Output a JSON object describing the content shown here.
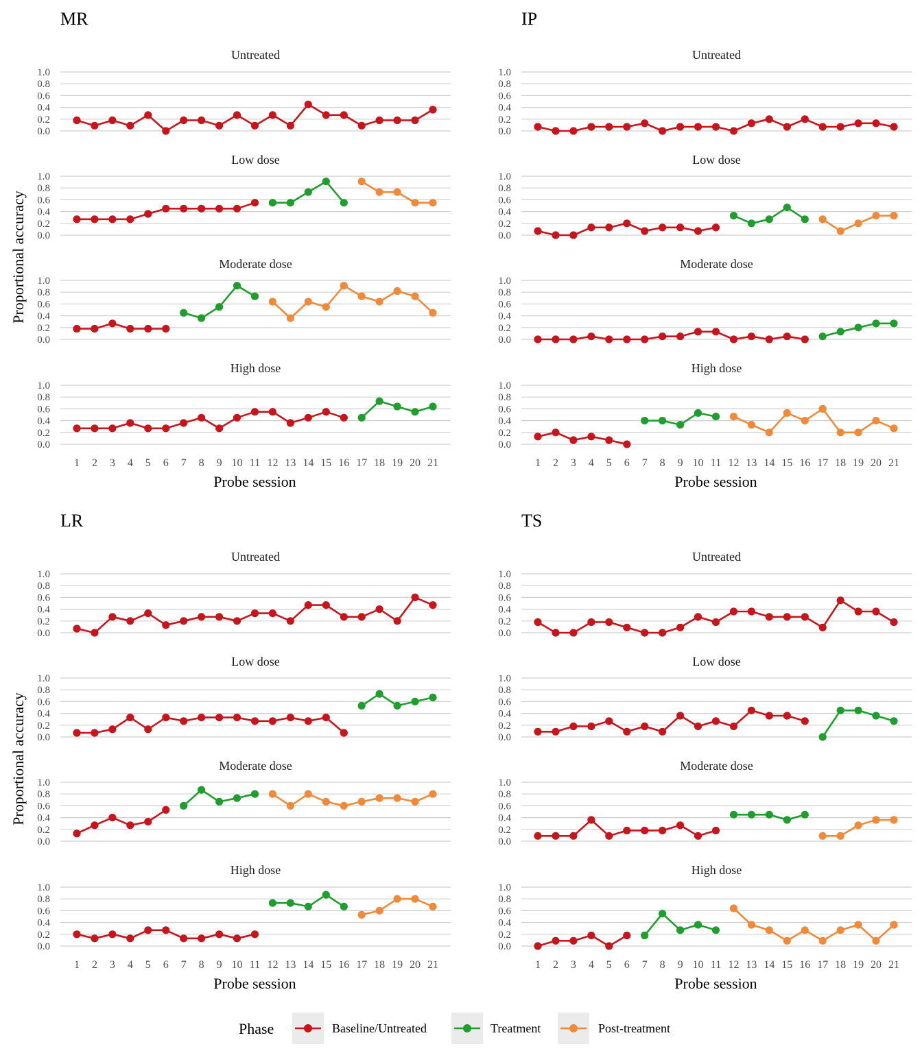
{
  "chart_data": {
    "type": "line",
    "phase_colors": {
      "Baseline/Untreated": "#c4161c",
      "Treatment": "#1f9e2f",
      "Post-treatment": "#ee8a3a"
    },
    "y_ticks": [
      "1.0",
      "0.8",
      "0.6",
      "0.4",
      "0.2",
      "0.0"
    ],
    "ylim": [
      0,
      1
    ],
    "x_ticks": [
      "1",
      "2",
      "3",
      "4",
      "5",
      "6",
      "7",
      "8",
      "9",
      "10",
      "11",
      "12",
      "13",
      "14",
      "15",
      "16",
      "17",
      "18",
      "19",
      "20",
      "21"
    ],
    "xlabel": "Probe session",
    "ylabel": "Proportional accuracy",
    "legend": {
      "title": "Phase",
      "entries": [
        "Baseline/Untreated",
        "Treatment",
        "Post-treatment"
      ],
      "position": "bottom"
    },
    "participants": [
      {
        "name": "MR",
        "conditions": [
          {
            "label": "Untreated",
            "segments": [
              {
                "phase": "Baseline/Untreated",
                "start": 1,
                "values": [
                  0.18,
                  0.09,
                  0.18,
                  0.09,
                  0.27,
                  0.0,
                  0.18,
                  0.18,
                  0.09,
                  0.27,
                  0.09,
                  0.27,
                  0.09,
                  0.45,
                  0.27,
                  0.27,
                  0.09,
                  0.18,
                  0.18,
                  0.18,
                  0.36
                ]
              }
            ]
          },
          {
            "label": "Low dose",
            "segments": [
              {
                "phase": "Baseline/Untreated",
                "start": 1,
                "values": [
                  0.27,
                  0.27,
                  0.27,
                  0.27,
                  0.36,
                  0.45,
                  0.45,
                  0.45,
                  0.45,
                  0.45,
                  0.55
                ]
              },
              {
                "phase": "Treatment",
                "start": 12,
                "values": [
                  0.55,
                  0.55,
                  0.73,
                  0.91,
                  0.55
                ]
              },
              {
                "phase": "Post-treatment",
                "start": 17,
                "values": [
                  0.91,
                  0.73,
                  0.73,
                  0.55,
                  0.55
                ]
              }
            ]
          },
          {
            "label": "Moderate dose",
            "segments": [
              {
                "phase": "Baseline/Untreated",
                "start": 1,
                "values": [
                  0.18,
                  0.18,
                  0.27,
                  0.18,
                  0.18,
                  0.18
                ]
              },
              {
                "phase": "Treatment",
                "start": 7,
                "values": [
                  0.45,
                  0.36,
                  0.55,
                  0.91,
                  0.73
                ]
              },
              {
                "phase": "Post-treatment",
                "start": 12,
                "values": [
                  0.64,
                  0.36,
                  0.64,
                  0.55,
                  0.91,
                  0.73,
                  0.64,
                  0.82,
                  0.73,
                  0.45
                ]
              }
            ]
          },
          {
            "label": "High dose",
            "segments": [
              {
                "phase": "Baseline/Untreated",
                "start": 1,
                "values": [
                  0.27,
                  0.27,
                  0.27,
                  0.36,
                  0.27,
                  0.27,
                  0.36,
                  0.45,
                  0.27,
                  0.45,
                  0.55,
                  0.55,
                  0.36,
                  0.45,
                  0.55,
                  0.45
                ]
              },
              {
                "phase": "Treatment",
                "start": 17,
                "values": [
                  0.45,
                  0.73,
                  0.64,
                  0.55,
                  0.64
                ]
              }
            ]
          }
        ]
      },
      {
        "name": "IP",
        "conditions": [
          {
            "label": "Untreated",
            "segments": [
              {
                "phase": "Baseline/Untreated",
                "start": 1,
                "values": [
                  0.07,
                  0.0,
                  0.0,
                  0.07,
                  0.07,
                  0.07,
                  0.13,
                  0.0,
                  0.07,
                  0.07,
                  0.07,
                  0.0,
                  0.13,
                  0.2,
                  0.07,
                  0.2,
                  0.07,
                  0.07,
                  0.13,
                  0.13,
                  0.07
                ]
              }
            ]
          },
          {
            "label": "Low dose",
            "segments": [
              {
                "phase": "Baseline/Untreated",
                "start": 1,
                "values": [
                  0.07,
                  0.0,
                  0.0,
                  0.13,
                  0.13,
                  0.2,
                  0.07,
                  0.13,
                  0.13,
                  0.07,
                  0.13
                ]
              },
              {
                "phase": "Treatment",
                "start": 12,
                "values": [
                  0.33,
                  0.2,
                  0.27,
                  0.47,
                  0.27
                ]
              },
              {
                "phase": "Post-treatment",
                "start": 17,
                "values": [
                  0.27,
                  0.07,
                  0.2,
                  0.33,
                  0.33
                ]
              }
            ]
          },
          {
            "label": "Moderate dose",
            "segments": [
              {
                "phase": "Baseline/Untreated",
                "start": 1,
                "values": [
                  0.0,
                  0.0,
                  0.0,
                  0.05,
                  0.0,
                  0.0,
                  0.0,
                  0.05,
                  0.05,
                  0.13,
                  0.13,
                  0.0,
                  0.05,
                  0.0,
                  0.05,
                  0.0
                ]
              },
              {
                "phase": "Treatment",
                "start": 17,
                "values": [
                  0.05,
                  0.13,
                  0.2,
                  0.27,
                  0.27
                ]
              }
            ]
          },
          {
            "label": "High dose",
            "segments": [
              {
                "phase": "Baseline/Untreated",
                "start": 1,
                "values": [
                  0.13,
                  0.2,
                  0.07,
                  0.13,
                  0.07,
                  0.0
                ]
              },
              {
                "phase": "Treatment",
                "start": 7,
                "values": [
                  0.4,
                  0.4,
                  0.33,
                  0.53,
                  0.47
                ]
              },
              {
                "phase": "Post-treatment",
                "start": 12,
                "values": [
                  0.47,
                  0.33,
                  0.2,
                  0.53,
                  0.4,
                  0.6,
                  0.2,
                  0.2,
                  0.4,
                  0.27
                ]
              }
            ]
          }
        ]
      },
      {
        "name": "LR",
        "conditions": [
          {
            "label": "Untreated",
            "segments": [
              {
                "phase": "Baseline/Untreated",
                "start": 1,
                "values": [
                  0.07,
                  0.0,
                  0.27,
                  0.2,
                  0.33,
                  0.13,
                  0.2,
                  0.27,
                  0.27,
                  0.2,
                  0.33,
                  0.33,
                  0.2,
                  0.47,
                  0.47,
                  0.27,
                  0.27,
                  0.4,
                  0.2,
                  0.6,
                  0.47
                ]
              }
            ]
          },
          {
            "label": "Low dose",
            "segments": [
              {
                "phase": "Baseline/Untreated",
                "start": 1,
                "values": [
                  0.07,
                  0.07,
                  0.13,
                  0.33,
                  0.13,
                  0.33,
                  0.27,
                  0.33,
                  0.33,
                  0.33,
                  0.27,
                  0.27,
                  0.33,
                  0.27,
                  0.33,
                  0.07
                ]
              },
              {
                "phase": "Treatment",
                "start": 17,
                "values": [
                  0.53,
                  0.73,
                  0.53,
                  0.6,
                  0.67
                ]
              }
            ]
          },
          {
            "label": "Moderate dose",
            "segments": [
              {
                "phase": "Baseline/Untreated",
                "start": 1,
                "values": [
                  0.13,
                  0.27,
                  0.4,
                  0.27,
                  0.33,
                  0.53
                ]
              },
              {
                "phase": "Treatment",
                "start": 7,
                "values": [
                  0.6,
                  0.87,
                  0.67,
                  0.73,
                  0.8
                ]
              },
              {
                "phase": "Post-treatment",
                "start": 12,
                "values": [
                  0.8,
                  0.6,
                  0.8,
                  0.67,
                  0.6,
                  0.67,
                  0.73,
                  0.73,
                  0.67,
                  0.8
                ]
              }
            ]
          },
          {
            "label": "High dose",
            "segments": [
              {
                "phase": "Baseline/Untreated",
                "start": 1,
                "values": [
                  0.2,
                  0.13,
                  0.2,
                  0.13,
                  0.27,
                  0.27,
                  0.13,
                  0.13,
                  0.2,
                  0.13,
                  0.2
                ]
              },
              {
                "phase": "Treatment",
                "start": 12,
                "values": [
                  0.73,
                  0.73,
                  0.67,
                  0.87,
                  0.67
                ]
              },
              {
                "phase": "Post-treatment",
                "start": 17,
                "values": [
                  0.53,
                  0.6,
                  0.8,
                  0.8,
                  0.67
                ]
              }
            ]
          }
        ]
      },
      {
        "name": "TS",
        "conditions": [
          {
            "label": "Untreated",
            "segments": [
              {
                "phase": "Baseline/Untreated",
                "start": 1,
                "values": [
                  0.18,
                  0.0,
                  0.0,
                  0.18,
                  0.18,
                  0.09,
                  0.0,
                  0.0,
                  0.09,
                  0.27,
                  0.18,
                  0.36,
                  0.36,
                  0.27,
                  0.27,
                  0.27,
                  0.09,
                  0.55,
                  0.36,
                  0.36,
                  0.18
                ]
              }
            ]
          },
          {
            "label": "Low dose",
            "segments": [
              {
                "phase": "Baseline/Untreated",
                "start": 1,
                "values": [
                  0.09,
                  0.09,
                  0.18,
                  0.18,
                  0.27,
                  0.09,
                  0.18,
                  0.09,
                  0.36,
                  0.18,
                  0.27,
                  0.18,
                  0.45,
                  0.36,
                  0.36,
                  0.27
                ]
              },
              {
                "phase": "Treatment",
                "start": 17,
                "values": [
                  0.0,
                  0.45,
                  0.45,
                  0.36,
                  0.27
                ]
              }
            ]
          },
          {
            "label": "Moderate dose",
            "segments": [
              {
                "phase": "Baseline/Untreated",
                "start": 1,
                "values": [
                  0.09,
                  0.09,
                  0.09,
                  0.36,
                  0.09,
                  0.18,
                  0.18,
                  0.18,
                  0.27,
                  0.09,
                  0.18
                ]
              },
              {
                "phase": "Treatment",
                "start": 12,
                "values": [
                  0.45,
                  0.45,
                  0.45,
                  0.36,
                  0.45
                ]
              },
              {
                "phase": "Post-treatment",
                "start": 17,
                "values": [
                  0.09,
                  0.09,
                  0.27,
                  0.36,
                  0.36
                ]
              }
            ]
          },
          {
            "label": "High dose",
            "segments": [
              {
                "phase": "Baseline/Untreated",
                "start": 1,
                "values": [
                  0.0,
                  0.09,
                  0.09,
                  0.18,
                  0.0,
                  0.18
                ]
              },
              {
                "phase": "Treatment",
                "start": 7,
                "values": [
                  0.18,
                  0.55,
                  0.27,
                  0.36,
                  0.27
                ]
              },
              {
                "phase": "Post-treatment",
                "start": 12,
                "values": [
                  0.64,
                  0.36,
                  0.27,
                  0.09,
                  0.27,
                  0.09,
                  0.27,
                  0.36,
                  0.09,
                  0.36
                ]
              }
            ]
          }
        ]
      }
    ]
  }
}
